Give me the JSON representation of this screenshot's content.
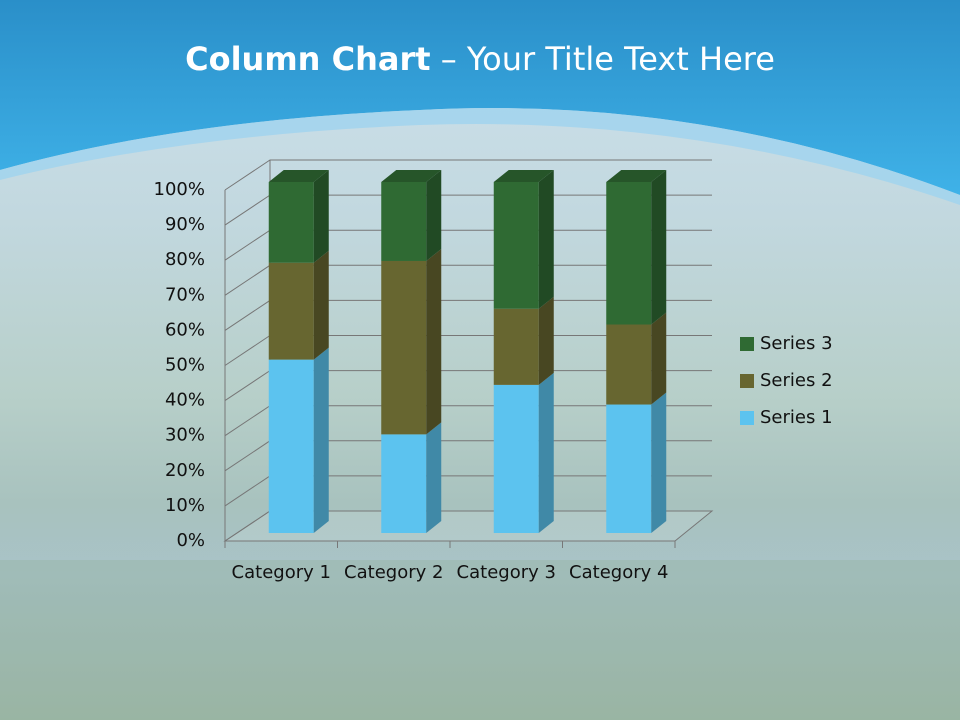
{
  "chart_data": {
    "type": "bar",
    "stacked": "percent",
    "view": "3d",
    "title_parts": [
      "Column Chart",
      "– Your Title Text Here"
    ],
    "categories": [
      "Category 1",
      "Category 2",
      "Category 3",
      "Category 4"
    ],
    "series": [
      {
        "name": "Series 1",
        "color": "#5cc3ef",
        "values": [
          49.4,
          28.1,
          42.2,
          36.6
        ]
      },
      {
        "name": "Series 2",
        "color": "#676630",
        "values": [
          27.6,
          49.4,
          21.7,
          22.8
        ]
      },
      {
        "name": "Series 3",
        "color": "#2f6a33",
        "values": [
          23.0,
          22.5,
          36.1,
          40.6
        ]
      }
    ],
    "ylim": [
      0,
      100
    ],
    "yticks": [
      {
        "value": 0,
        "label": "0%"
      },
      {
        "value": 10,
        "label": "10%"
      },
      {
        "value": 20,
        "label": "20%"
      },
      {
        "value": 30,
        "label": "30%"
      },
      {
        "value": 40,
        "label": "40%"
      },
      {
        "value": 50,
        "label": "50%"
      },
      {
        "value": 60,
        "label": "60%"
      },
      {
        "value": 70,
        "label": "70%"
      },
      {
        "value": 80,
        "label": "80%"
      },
      {
        "value": 90,
        "label": "90%"
      },
      {
        "value": 100,
        "label": "100%"
      }
    ],
    "grid": true,
    "legend": "right"
  }
}
